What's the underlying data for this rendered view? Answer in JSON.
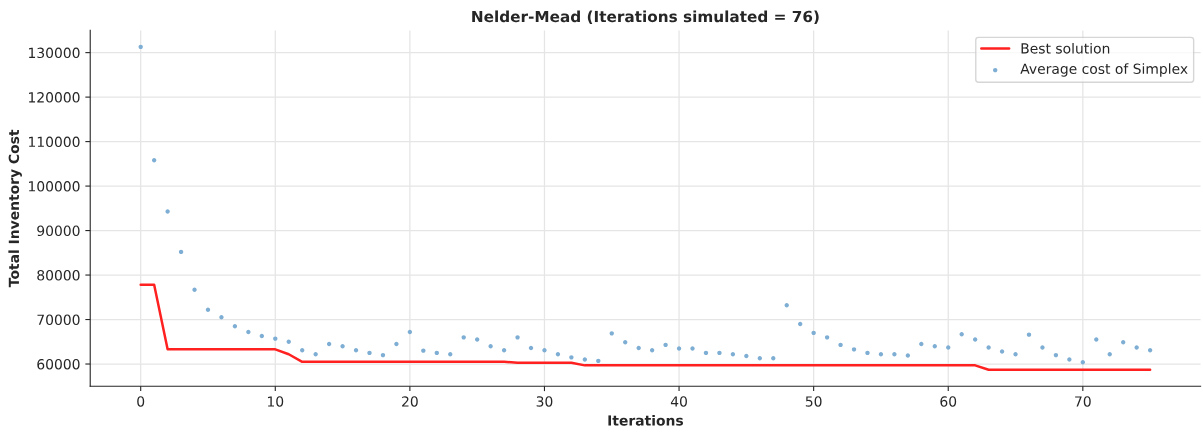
{
  "chart_data": {
    "type": "line",
    "title": "Nelder-Mead (Iterations simulated = 76)",
    "xlabel": "Iterations",
    "ylabel": "Total Inventory Cost",
    "x": [
      0,
      1,
      2,
      3,
      4,
      5,
      6,
      7,
      8,
      9,
      10,
      11,
      12,
      13,
      14,
      15,
      16,
      17,
      18,
      19,
      20,
      21,
      22,
      23,
      24,
      25,
      26,
      27,
      28,
      29,
      30,
      31,
      32,
      33,
      34,
      35,
      36,
      37,
      38,
      39,
      40,
      41,
      42,
      43,
      44,
      45,
      46,
      47,
      48,
      49,
      50,
      51,
      52,
      53,
      54,
      55,
      56,
      57,
      58,
      59,
      60,
      61,
      62,
      63,
      64,
      65,
      66,
      67,
      68,
      69,
      70,
      71,
      72,
      73,
      74,
      75
    ],
    "series": [
      {
        "name": "Best solution",
        "color": "#ff2020",
        "marker": "none",
        "values": [
          77800,
          77800,
          63300,
          63300,
          63300,
          63300,
          63300,
          63300,
          63300,
          63300,
          63300,
          62200,
          60500,
          60500,
          60500,
          60500,
          60500,
          60500,
          60500,
          60500,
          60500,
          60500,
          60500,
          60500,
          60500,
          60500,
          60500,
          60500,
          60300,
          60300,
          60300,
          60300,
          60300,
          59700,
          59700,
          59700,
          59700,
          59700,
          59700,
          59700,
          59700,
          59700,
          59700,
          59700,
          59700,
          59700,
          59700,
          59700,
          59700,
          59700,
          59700,
          59700,
          59700,
          59700,
          59700,
          59700,
          59700,
          59700,
          59700,
          59700,
          59700,
          59700,
          59700,
          58700,
          58700,
          58700,
          58700,
          58700,
          58700,
          58700,
          58700,
          58700,
          58700,
          58700,
          58700,
          58700
        ]
      },
      {
        "name": "Average cost of Simplex",
        "type": "scatter",
        "color": "#7eaed3",
        "marker": "circle",
        "values": [
          131300,
          105800,
          94300,
          85200,
          76700,
          72200,
          70500,
          68500,
          67200,
          66300,
          65700,
          65000,
          63100,
          62200,
          64500,
          64000,
          63100,
          62500,
          62000,
          64500,
          67200,
          63000,
          62500,
          62200,
          66000,
          65500,
          64000,
          63100,
          66000,
          63600,
          63100,
          62200,
          61500,
          61000,
          60700,
          66900,
          64900,
          63600,
          63100,
          64300,
          63500,
          63500,
          62500,
          62500,
          62200,
          61800,
          61300,
          61300,
          73200,
          69000,
          67000,
          66000,
          64300,
          63300,
          62500,
          62200,
          62200,
          61900,
          64500,
          64000,
          63700,
          66700,
          65500,
          63700,
          62800,
          62200,
          66600,
          63700,
          62000,
          61000,
          60400,
          65500,
          62200,
          64900,
          63700,
          63100
        ]
      }
    ],
    "xlim": [
      -3.75,
      78.75
    ],
    "xticks": [
      0,
      10,
      20,
      30,
      40,
      50,
      60,
      70
    ],
    "ylim": [
      55000,
      135000
    ],
    "yticks": [
      60000,
      70000,
      80000,
      90000,
      100000,
      110000,
      120000,
      130000
    ],
    "grid": true,
    "legend": "top right"
  }
}
